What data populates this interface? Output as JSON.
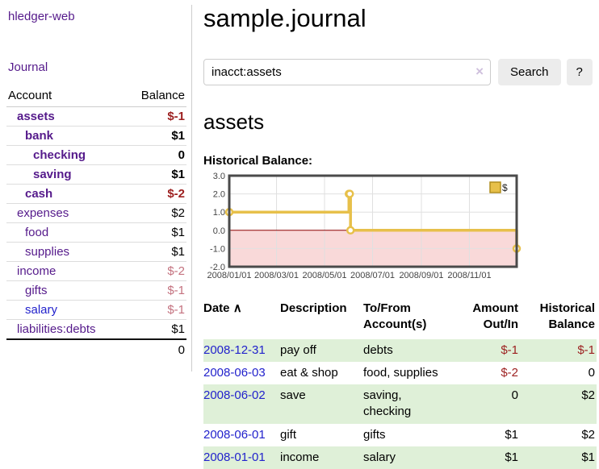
{
  "colors": {
    "link_purple": "#551a8b",
    "link_blue": "#2222cc",
    "negative_strong": "#9c1f1f",
    "negative_light": "#c4727f",
    "row_stripe_green": "#dff0d8"
  },
  "sidebar": {
    "app_title": "hledger-web",
    "nav_journal": "Journal",
    "accounts_table": {
      "headers": [
        "Account",
        "Balance"
      ],
      "rows": [
        {
          "account": "assets",
          "balance": "$-1",
          "level": 0,
          "bold": true,
          "balance_color": "negative",
          "link_color": "purple"
        },
        {
          "account": "bank",
          "balance": "$1",
          "level": 1,
          "bold": true,
          "balance_color": "normal",
          "link_color": "purple"
        },
        {
          "account": "checking",
          "balance": "0",
          "level": 2,
          "bold": true,
          "balance_color": "normal",
          "link_color": "purple"
        },
        {
          "account": "saving",
          "balance": "$1",
          "level": 2,
          "bold": true,
          "balance_color": "normal",
          "link_color": "purple"
        },
        {
          "account": "cash",
          "balance": "$-2",
          "level": 1,
          "bold": true,
          "balance_color": "negative",
          "link_color": "purple"
        },
        {
          "account": "expenses",
          "balance": "$2",
          "level": 0,
          "bold": false,
          "balance_color": "normal",
          "link_color": "purple"
        },
        {
          "account": "food",
          "balance": "$1",
          "level": 1,
          "bold": false,
          "balance_color": "normal",
          "link_color": "purple"
        },
        {
          "account": "supplies",
          "balance": "$1",
          "level": 1,
          "bold": false,
          "balance_color": "normal",
          "link_color": "purple"
        },
        {
          "account": "income",
          "balance": "$-2",
          "level": 0,
          "bold": false,
          "balance_color": "negative-light",
          "link_color": "purple"
        },
        {
          "account": "gifts",
          "balance": "$-1",
          "level": 1,
          "bold": false,
          "balance_color": "negative-light",
          "link_color": "purple"
        },
        {
          "account": "salary",
          "balance": "$-1",
          "level": 1,
          "bold": false,
          "balance_color": "negative-light",
          "link_color": "blue"
        },
        {
          "account": "liabilities:debts",
          "balance": "$1",
          "level": 0,
          "bold": false,
          "balance_color": "normal",
          "link_color": "purple"
        }
      ],
      "total": "0"
    }
  },
  "main": {
    "page_title": "sample.journal",
    "search": {
      "value": "inacct:assets",
      "clear_icon": "×",
      "button_label": "Search",
      "help_label": "?"
    },
    "account_heading": "assets",
    "register_table": {
      "headers": {
        "date": "Date",
        "sort_icon": "∧",
        "description": "Description",
        "accounts": "To/From\nAccount(s)",
        "amount": "Amount\nOut/In",
        "balance": "Historical\nBalance"
      },
      "rows": [
        {
          "date": "2008-12-31",
          "description": "pay off",
          "accounts": "debts",
          "amount": "$-1",
          "amount_negative": true,
          "balance": "$-1",
          "balance_negative": true
        },
        {
          "date": "2008-06-03",
          "description": "eat & shop",
          "accounts": "food, supplies",
          "amount": "$-2",
          "amount_negative": true,
          "balance": "0",
          "balance_negative": false
        },
        {
          "date": "2008-06-02",
          "description": "save",
          "accounts": "saving,\nchecking",
          "amount": "0",
          "amount_negative": false,
          "balance": "$2",
          "balance_negative": false
        },
        {
          "date": "2008-06-01",
          "description": "gift",
          "accounts": "gifts",
          "amount": "$1",
          "amount_negative": false,
          "balance": "$2",
          "balance_negative": false
        },
        {
          "date": "2008-01-01",
          "description": "income",
          "accounts": "salary",
          "amount": "$1",
          "amount_negative": false,
          "balance": "$1",
          "balance_negative": false
        }
      ]
    }
  },
  "chart_data": {
    "type": "line",
    "title": "Historical Balance:",
    "step": "after",
    "series": [
      {
        "name": "$",
        "points": [
          [
            "2008-01-01",
            1
          ],
          [
            "2008-06-01",
            2
          ],
          [
            "2008-06-02",
            2
          ],
          [
            "2008-06-03",
            0
          ],
          [
            "2008-12-31",
            -1
          ]
        ]
      }
    ],
    "x_range": [
      "2008-01-01",
      "2008-12-31"
    ],
    "ylim": [
      -2,
      3
    ],
    "y_ticks": [
      3.0,
      2.0,
      1.0,
      0.0,
      -1.0,
      -2.0
    ],
    "x_ticks": [
      {
        "date": "2008-01-01",
        "label": "2008/01/01"
      },
      {
        "date": "2008-03-01",
        "label": "2008/03/01"
      },
      {
        "date": "2008-05-01",
        "label": "2008/05/01"
      },
      {
        "date": "2008-07-01",
        "label": "2008/07/01"
      },
      {
        "date": "2008-09-01",
        "label": "2008/09/01"
      },
      {
        "date": "2008-11-01",
        "label": "2008/11/01"
      }
    ],
    "grid": true,
    "legend_position": "top-right",
    "line_color": "#e7c04a",
    "marker_fill": "#ffffff",
    "zero_line_color": "#8b0000",
    "negative_region_color": "#f9d9d9",
    "grid_color": "#e0e0e0",
    "border_color": "#4a4a4a"
  }
}
